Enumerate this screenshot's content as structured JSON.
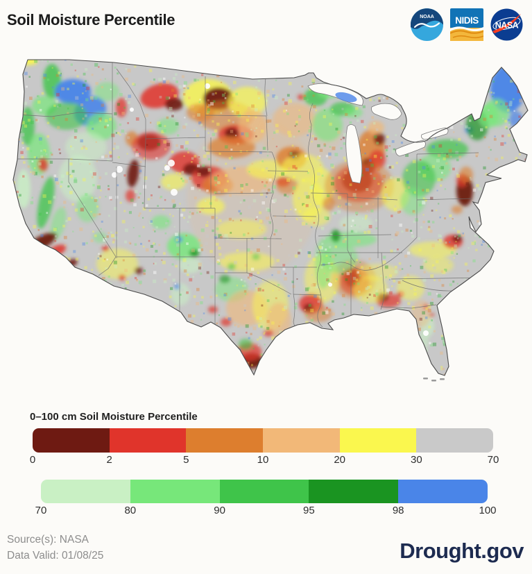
{
  "title": "Soil Moisture Percentile",
  "logos": {
    "noaa_label": "NOAA",
    "nidis_label": "NIDIS",
    "nasa_label": "NASA",
    "noaa_navy": "#15477c",
    "noaa_lightblue": "#35a7dd",
    "nidis_blue": "#1173b6",
    "nidis_yellow": "#f3b73c",
    "nidis_orange": "#e08c12",
    "nasa_blue": "#0b3d91",
    "nasa_red": "#fc3d21"
  },
  "legend": {
    "title": "0–100 cm Soil Moisture Percentile",
    "bars": [
      {
        "ticks": [
          "0",
          "2",
          "5",
          "10",
          "20",
          "30",
          "70"
        ],
        "colors": [
          "#6e1a12",
          "#e0342b",
          "#dd7e2e",
          "#f2b878",
          "#faf74e",
          "#c9c9c9"
        ]
      },
      {
        "ticks": [
          "70",
          "80",
          "90",
          "95",
          "98",
          "100"
        ],
        "colors": [
          "#c9f0c4",
          "#77e77a",
          "#3fc44a",
          "#1a9421",
          "#4a85e8"
        ]
      }
    ]
  },
  "footer": {
    "source": "Source(s): NASA",
    "valid": "Data Valid: 01/08/25",
    "brand": "Drought.gov"
  },
  "chart_data": {
    "type": "heatmap",
    "title": "Soil Moisture Percentile",
    "legend_title": "0–100 cm Soil Moisture Percentile",
    "scale_breaks": [
      0,
      2,
      5,
      10,
      20,
      30,
      70,
      80,
      90,
      95,
      98,
      100
    ],
    "scale_colors": [
      "#6e1a12",
      "#e0342b",
      "#dd7e2e",
      "#f2b878",
      "#faf74e",
      "#c9c9c9",
      "#c9f0c4",
      "#77e77a",
      "#3fc44a",
      "#1a9421",
      "#4a85e8"
    ],
    "source": "NASA",
    "data_valid": "01/08/25"
  },
  "map": {
    "base": "#c8c8c8",
    "coast": "#4a4a4a",
    "state_line": "#6e6e6e",
    "palette": {
      "maroon": "#6e1a12",
      "red": "#e0342b",
      "orange": "#dd7e2e",
      "tan": "#f0b878",
      "yellow": "#f9f64e",
      "gray": "#c8c8c8",
      "lightgreen": "#c9f0c4",
      "green2": "#77e77a",
      "green3": "#3fc44a",
      "green4": "#1a9421",
      "blue": "#4a85e8",
      "white": "#ffffff"
    },
    "features": [
      [
        360,
        210,
        95,
        115,
        0,
        "tan",
        0.15
      ],
      [
        430,
        120,
        60,
        40,
        0,
        "tan",
        0.2
      ],
      [
        38,
        16,
        12,
        6,
        0,
        "yellow",
        0.9
      ],
      [
        71,
        45,
        13,
        25,
        0,
        "green3",
        0.8
      ],
      [
        60,
        80,
        18,
        14,
        0,
        "green2",
        0.7
      ],
      [
        101,
        60,
        26,
        18,
        0,
        "blue",
        0.95
      ],
      [
        126,
        88,
        24,
        20,
        -30,
        "blue",
        0.9
      ],
      [
        92,
        95,
        30,
        20,
        0,
        "green3",
        0.6
      ],
      [
        142,
        110,
        22,
        20,
        0,
        "green2",
        0.7
      ],
      [
        150,
        60,
        18,
        14,
        0,
        "green2",
        0.5
      ],
      [
        36,
        110,
        10,
        28,
        0,
        "green3",
        0.75
      ],
      [
        52,
        150,
        16,
        30,
        0,
        "green2",
        0.7
      ],
      [
        120,
        140,
        30,
        22,
        0,
        "lightgreen",
        0.5
      ],
      [
        30,
        200,
        10,
        28,
        0,
        "lightgreen",
        0.8
      ],
      [
        62,
        220,
        10,
        38,
        12,
        "green3",
        0.75
      ],
      [
        80,
        250,
        10,
        24,
        15,
        "green2",
        0.5
      ],
      [
        58,
        165,
        7,
        10,
        0,
        "red",
        0.8
      ],
      [
        108,
        185,
        28,
        34,
        0,
        "lightgreen",
        0.55
      ],
      [
        122,
        228,
        16,
        20,
        0,
        "green2",
        0.5
      ],
      [
        56,
        277,
        24,
        9,
        -28,
        "maroon",
        0.95
      ],
      [
        78,
        289,
        14,
        7,
        -25,
        "red",
        0.85
      ],
      [
        99,
        307,
        9,
        5,
        -20,
        "maroon",
        0.9
      ],
      [
        171,
        83,
        8,
        14,
        0,
        "red",
        0.75
      ],
      [
        186,
        128,
        9,
        11,
        0,
        "orange",
        0.7
      ],
      [
        226,
        66,
        28,
        17,
        -15,
        "red",
        0.85
      ],
      [
        247,
        78,
        13,
        9,
        0,
        "maroon",
        0.9
      ],
      [
        296,
        68,
        36,
        26,
        0,
        "yellow",
        0.8
      ],
      [
        285,
        90,
        20,
        13,
        0,
        "orange",
        0.6
      ],
      [
        238,
        110,
        16,
        12,
        0,
        "green2",
        0.55
      ],
      [
        211,
        133,
        17,
        12,
        0,
        "maroon",
        0.9
      ],
      [
        214,
        138,
        28,
        20,
        0,
        "red",
        0.6
      ],
      [
        311,
        70,
        22,
        16,
        0,
        "maroon",
        0.95
      ],
      [
        320,
        95,
        42,
        22,
        0,
        "orange",
        0.55
      ],
      [
        352,
        75,
        28,
        22,
        0,
        "yellow",
        0.7
      ],
      [
        336,
        122,
        26,
        14,
        0,
        "red",
        0.8
      ],
      [
        330,
        120,
        10,
        8,
        0,
        "maroon",
        0.9
      ],
      [
        330,
        140,
        34,
        16,
        0,
        "orange",
        0.7
      ],
      [
        360,
        110,
        20,
        25,
        0,
        "tan",
        0.7
      ],
      [
        262,
        162,
        22,
        16,
        0,
        "red",
        0.8
      ],
      [
        272,
        172,
        12,
        9,
        0,
        "maroon",
        0.85
      ],
      [
        298,
        185,
        26,
        18,
        0,
        "red",
        0.75
      ],
      [
        290,
        175,
        10,
        8,
        0,
        "maroon",
        0.85
      ],
      [
        310,
        195,
        22,
        14,
        0,
        "orange",
        0.7
      ],
      [
        246,
        190,
        18,
        12,
        0,
        "yellow",
        0.6
      ],
      [
        346,
        188,
        46,
        20,
        0,
        "tan",
        0.6
      ],
      [
        382,
        172,
        30,
        14,
        0,
        "yellow",
        0.6
      ],
      [
        300,
        225,
        20,
        12,
        0,
        "yellow",
        0.65
      ],
      [
        188,
        178,
        8,
        20,
        8,
        "maroon",
        0.9
      ],
      [
        184,
        210,
        7,
        9,
        0,
        "red",
        0.7
      ],
      [
        228,
        248,
        14,
        10,
        0,
        "green2",
        0.6
      ],
      [
        165,
        308,
        30,
        22,
        0,
        "yellow",
        0.5
      ],
      [
        148,
        286,
        5,
        4,
        0,
        "red",
        0.85
      ],
      [
        172,
        328,
        5,
        4,
        0,
        "red",
        0.8
      ],
      [
        196,
        318,
        6,
        5,
        0,
        "maroon",
        0.8
      ],
      [
        140,
        270,
        10,
        8,
        0,
        "green2",
        0.45
      ],
      [
        261,
        283,
        24,
        19,
        0,
        "green2",
        0.8
      ],
      [
        254,
        273,
        5,
        4,
        0,
        "blue",
        0.9
      ],
      [
        276,
        293,
        7,
        6,
        0,
        "green4",
        0.8
      ],
      [
        270,
        310,
        16,
        12,
        0,
        "lightgreen",
        0.6
      ],
      [
        256,
        352,
        14,
        16,
        0,
        "lightgreen",
        0.55
      ],
      [
        251,
        341,
        4,
        4,
        0,
        "blue",
        0.8
      ],
      [
        344,
        258,
        36,
        14,
        0,
        "yellow",
        0.5
      ],
      [
        352,
        305,
        40,
        14,
        0,
        "yellow",
        0.55
      ],
      [
        330,
        312,
        6,
        5,
        0,
        "green3",
        0.6
      ],
      [
        365,
        298,
        6,
        5,
        0,
        "green3",
        0.5
      ],
      [
        330,
        345,
        24,
        18,
        0,
        "green2",
        0.5
      ],
      [
        320,
        330,
        8,
        6,
        0,
        "green4",
        0.6
      ],
      [
        352,
        372,
        30,
        26,
        0,
        "tan",
        0.6
      ],
      [
        386,
        368,
        26,
        36,
        0,
        "yellow",
        0.5
      ],
      [
        398,
        390,
        18,
        26,
        0,
        "tan",
        0.6
      ],
      [
        322,
        392,
        8,
        6,
        0,
        "red",
        0.7
      ],
      [
        303,
        374,
        7,
        5,
        0,
        "red",
        0.7
      ],
      [
        359,
        448,
        16,
        11,
        0,
        "maroon",
        0.95
      ],
      [
        355,
        435,
        18,
        13,
        0,
        "red",
        0.7
      ],
      [
        350,
        424,
        10,
        8,
        0,
        "green3",
        0.6
      ],
      [
        383,
        408,
        7,
        5,
        0,
        "red",
        0.7
      ],
      [
        430,
        68,
        5,
        4,
        0,
        "red",
        0.8
      ],
      [
        451,
        68,
        17,
        13,
        0,
        "green3",
        0.75
      ],
      [
        470,
        60,
        16,
        10,
        0,
        "green2",
        0.7
      ],
      [
        420,
        100,
        30,
        25,
        0,
        "tan",
        0.5
      ],
      [
        468,
        108,
        22,
        24,
        0,
        "green2",
        0.6
      ],
      [
        490,
        85,
        18,
        10,
        0,
        "green3",
        0.7
      ],
      [
        505,
        90,
        14,
        8,
        0,
        "green2",
        0.6
      ],
      [
        416,
        156,
        22,
        17,
        0,
        "orange",
        0.8
      ],
      [
        421,
        152,
        8,
        6,
        0,
        "maroon",
        0.8
      ],
      [
        432,
        170,
        30,
        20,
        0,
        "yellow",
        0.6
      ],
      [
        404,
        190,
        10,
        7,
        0,
        "red",
        0.8
      ],
      [
        410,
        196,
        16,
        12,
        0,
        "orange",
        0.55
      ],
      [
        440,
        215,
        22,
        30,
        0,
        "yellow",
        0.6
      ],
      [
        461,
        198,
        16,
        28,
        0,
        "yellow",
        0.6
      ],
      [
        470,
        222,
        9,
        10,
        0,
        "orange",
        0.6
      ],
      [
        452,
        240,
        20,
        14,
        0,
        "yellow",
        0.5
      ],
      [
        531,
        143,
        20,
        28,
        0,
        "orange",
        0.8
      ],
      [
        526,
        168,
        11,
        12,
        0,
        "maroon",
        0.85
      ],
      [
        543,
        128,
        8,
        9,
        0,
        "maroon",
        0.8
      ],
      [
        540,
        158,
        12,
        14,
        0,
        "red",
        0.7
      ],
      [
        538,
        112,
        12,
        10,
        0,
        "tan",
        0.7
      ],
      [
        511,
        188,
        22,
        17,
        0,
        "maroon",
        0.9
      ],
      [
        513,
        192,
        36,
        27,
        0,
        "red",
        0.6
      ],
      [
        514,
        196,
        50,
        38,
        0,
        "orange",
        0.4
      ],
      [
        566,
        208,
        20,
        24,
        0,
        "yellow",
        0.55
      ],
      [
        641,
        143,
        30,
        14,
        0,
        "green3",
        0.7
      ],
      [
        622,
        170,
        24,
        20,
        0,
        "green2",
        0.6
      ],
      [
        600,
        185,
        24,
        26,
        0,
        "green3",
        0.6
      ],
      [
        591,
        218,
        18,
        20,
        0,
        "green2",
        0.5
      ],
      [
        672,
        115,
        6,
        5,
        0,
        "blue",
        0.8
      ],
      [
        684,
        108,
        16,
        22,
        0,
        "green4",
        0.7
      ],
      [
        700,
        95,
        14,
        18,
        0,
        "green2",
        0.7
      ],
      [
        728,
        56,
        25,
        34,
        0,
        "blue",
        0.95
      ],
      [
        712,
        90,
        18,
        20,
        0,
        "green2",
        0.7
      ],
      [
        740,
        100,
        10,
        12,
        0,
        "blue",
        0.7
      ],
      [
        666,
        203,
        12,
        22,
        0,
        "maroon",
        0.95
      ],
      [
        662,
        188,
        8,
        10,
        0,
        "red",
        0.7
      ],
      [
        668,
        180,
        10,
        12,
        0,
        "orange",
        0.6
      ],
      [
        655,
        230,
        8,
        6,
        0,
        "orange",
        0.6
      ],
      [
        620,
        288,
        34,
        12,
        0,
        "yellow",
        0.55
      ],
      [
        649,
        276,
        14,
        10,
        0,
        "red",
        0.8
      ],
      [
        655,
        272,
        7,
        5,
        0,
        "maroon",
        0.85
      ],
      [
        628,
        310,
        22,
        12,
        0,
        "yellow",
        0.45
      ],
      [
        588,
        343,
        20,
        18,
        0,
        "yellow",
        0.5
      ],
      [
        573,
        352,
        5,
        4,
        0,
        "red",
        0.7
      ],
      [
        504,
        328,
        12,
        14,
        0,
        "maroon",
        0.9
      ],
      [
        507,
        333,
        22,
        20,
        0,
        "red",
        0.65
      ],
      [
        506,
        330,
        32,
        28,
        0,
        "orange",
        0.4
      ],
      [
        556,
        361,
        18,
        10,
        0,
        "red",
        0.7
      ],
      [
        548,
        356,
        8,
        6,
        0,
        "maroon",
        0.8
      ],
      [
        530,
        345,
        25,
        20,
        0,
        "yellow",
        0.5
      ],
      [
        460,
        330,
        25,
        35,
        0,
        "yellow",
        0.5
      ],
      [
        444,
        366,
        17,
        14,
        0,
        "red",
        0.8
      ],
      [
        441,
        372,
        7,
        6,
        0,
        "maroon",
        0.9
      ],
      [
        455,
        380,
        20,
        12,
        0,
        "orange",
        0.5
      ],
      [
        486,
        300,
        26,
        22,
        0,
        "green2",
        0.5
      ],
      [
        462,
        308,
        12,
        36,
        0,
        "green2",
        0.5
      ],
      [
        501,
        273,
        38,
        11,
        0,
        "green2",
        0.6
      ],
      [
        480,
        268,
        7,
        9,
        0,
        "green4",
        0.8
      ],
      [
        509,
        250,
        24,
        12,
        0,
        "lightgreen",
        0.5
      ],
      [
        540,
        320,
        30,
        12,
        0,
        "yellow",
        0.4
      ],
      [
        612,
        398,
        10,
        16,
        0,
        "lightgreen",
        0.6
      ],
      [
        606,
        420,
        8,
        12,
        0,
        "lightgreen",
        0.55
      ],
      [
        610,
        370,
        4,
        4,
        0,
        "red",
        0.8
      ],
      [
        618,
        382,
        4,
        3,
        0,
        "red",
        0.7
      ],
      [
        603,
        380,
        14,
        20,
        0,
        "tan",
        0.4
      ]
    ],
    "white_spots": [
      [
        168,
        172,
        5
      ],
      [
        161,
        180,
        4
      ],
      [
        243,
        163,
        5
      ],
      [
        237,
        170,
        4
      ],
      [
        295,
        52,
        4
      ],
      [
        186,
        86,
        3
      ],
      [
        472,
        338,
        3
      ],
      [
        560,
        390,
        4
      ],
      [
        610,
        408,
        4
      ],
      [
        247,
        205,
        5
      ]
    ],
    "superior_blue": [
      495,
      68,
      16,
      6,
      15
    ],
    "speckles": {
      "seed": 7,
      "count": 2400,
      "weights": [
        [
          "yellow",
          0.24
        ],
        [
          "tan",
          0.13
        ],
        [
          "orange",
          0.08
        ],
        [
          "red",
          0.05
        ],
        [
          "maroon",
          0.02
        ],
        [
          "gray",
          0.1
        ],
        [
          "lightgreen",
          0.1
        ],
        [
          "green2",
          0.1
        ],
        [
          "green3",
          0.06
        ],
        [
          "green4",
          0.03
        ],
        [
          "blue",
          0.04
        ],
        [
          "white",
          0.05
        ]
      ]
    }
  }
}
